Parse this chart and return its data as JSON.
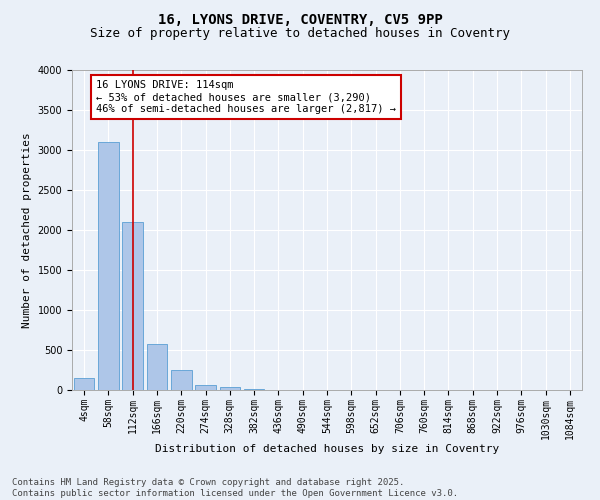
{
  "title1": "16, LYONS DRIVE, COVENTRY, CV5 9PP",
  "title2": "Size of property relative to detached houses in Coventry",
  "xlabel": "Distribution of detached houses by size in Coventry",
  "ylabel": "Number of detached properties",
  "categories": [
    "4sqm",
    "58sqm",
    "112sqm",
    "166sqm",
    "220sqm",
    "274sqm",
    "328sqm",
    "382sqm",
    "436sqm",
    "490sqm",
    "544sqm",
    "598sqm",
    "652sqm",
    "706sqm",
    "760sqm",
    "814sqm",
    "868sqm",
    "922sqm",
    "976sqm",
    "1030sqm",
    "1084sqm"
  ],
  "values": [
    150,
    3100,
    2100,
    580,
    245,
    65,
    35,
    10,
    0,
    0,
    0,
    0,
    0,
    0,
    0,
    0,
    0,
    0,
    0,
    0,
    0
  ],
  "bar_color": "#aec6e8",
  "bar_edge_color": "#5a9fd4",
  "vline_x": 2,
  "vline_color": "#cc0000",
  "annotation_text": "16 LYONS DRIVE: 114sqm\n← 53% of detached houses are smaller (3,290)\n46% of semi-detached houses are larger (2,817) →",
  "annotation_box_color": "#ffffff",
  "annotation_box_edge": "#cc0000",
  "ylim": [
    0,
    4000
  ],
  "yticks": [
    0,
    500,
    1000,
    1500,
    2000,
    2500,
    3000,
    3500,
    4000
  ],
  "background_color": "#eaf0f8",
  "plot_bg_color": "#eaf0f8",
  "footer_text": "Contains HM Land Registry data © Crown copyright and database right 2025.\nContains public sector information licensed under the Open Government Licence v3.0.",
  "title1_fontsize": 10,
  "title2_fontsize": 9,
  "xlabel_fontsize": 8,
  "ylabel_fontsize": 8,
  "tick_fontsize": 7,
  "annotation_fontsize": 7.5,
  "footer_fontsize": 6.5
}
